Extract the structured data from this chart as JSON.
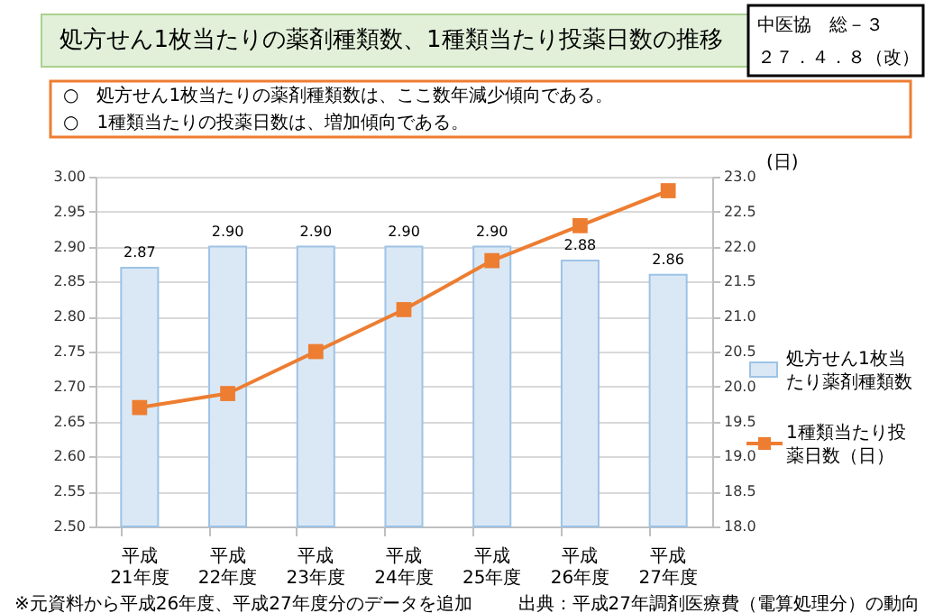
{
  "chart_data": {
    "type": "bar",
    "title": "処方せん1枚当たりの薬剤種類数、1種類当たり投薬日数の推移",
    "categories": [
      "平成21年度",
      "平成22年度",
      "平成23年度",
      "平成24年度",
      "平成25年度",
      "平成26年度",
      "平成27年度"
    ],
    "series": [
      {
        "name": "処方せん1枚当たり薬剤種類数",
        "color": "#dae8f5",
        "values": [
          2.87,
          2.9,
          2.9,
          2.9,
          2.9,
          2.88,
          2.86
        ],
        "value_labels": [
          "2.87",
          "2.90",
          "2.90",
          "2.90",
          "2.90",
          "2.88",
          "2.86"
        ]
      },
      {
        "name": "1種類当たり投薬日数（日）",
        "type": "line",
        "axis": "y2",
        "color": "#ed7d31",
        "marker": "square",
        "values": [
          19.7,
          19.9,
          20.5,
          21.1,
          21.8,
          22.3,
          22.8
        ]
      }
    ],
    "ylim": [
      2.5,
      3.0
    ],
    "yticks": [
      {
        "value": 2.5,
        "label": "2.50"
      },
      {
        "value": 2.55,
        "label": "2.55"
      },
      {
        "value": 2.6,
        "label": "2.60"
      },
      {
        "value": 2.65,
        "label": "2.65"
      },
      {
        "value": 2.7,
        "label": "2.70"
      },
      {
        "value": 2.75,
        "label": "2.75"
      },
      {
        "value": 2.8,
        "label": "2.80"
      },
      {
        "value": 2.85,
        "label": "2.85"
      },
      {
        "value": 2.9,
        "label": "2.90"
      },
      {
        "value": 2.95,
        "label": "2.95"
      },
      {
        "value": 3.0,
        "label": "3.00"
      }
    ],
    "y2lim": [
      18.0,
      23.0
    ],
    "y2ticks": [
      {
        "value": 18,
        "label": "18.0"
      },
      {
        "value": 18.5,
        "label": "18.5"
      },
      {
        "value": 19,
        "label": "19.0"
      },
      {
        "value": 19.5,
        "label": "19.5"
      },
      {
        "value": 20,
        "label": "20.0"
      },
      {
        "value": 20.5,
        "label": "20.5"
      },
      {
        "value": 21,
        "label": "21.0"
      },
      {
        "value": 21.5,
        "label": "21.5"
      },
      {
        "value": 22,
        "label": "22.0"
      },
      {
        "value": 22.5,
        "label": "22.5"
      },
      {
        "value": 23,
        "label": "23.0"
      }
    ],
    "y2label": "(日)",
    "grid": "y",
    "legend": "right",
    "annotations": [
      "○　処方せん1枚当たりの薬剤種類数は、ここ数年減少傾向である。",
      "○　1種類当たりの投薬日数は、増加傾向である。",
      "中医協　総－３",
      "２７．４．８（改）",
      "※元資料から平成26年度、平成27年度分のデータを追加",
      "出典：平成27年調剤医療費（電算処理分）の動向"
    ]
  }
}
